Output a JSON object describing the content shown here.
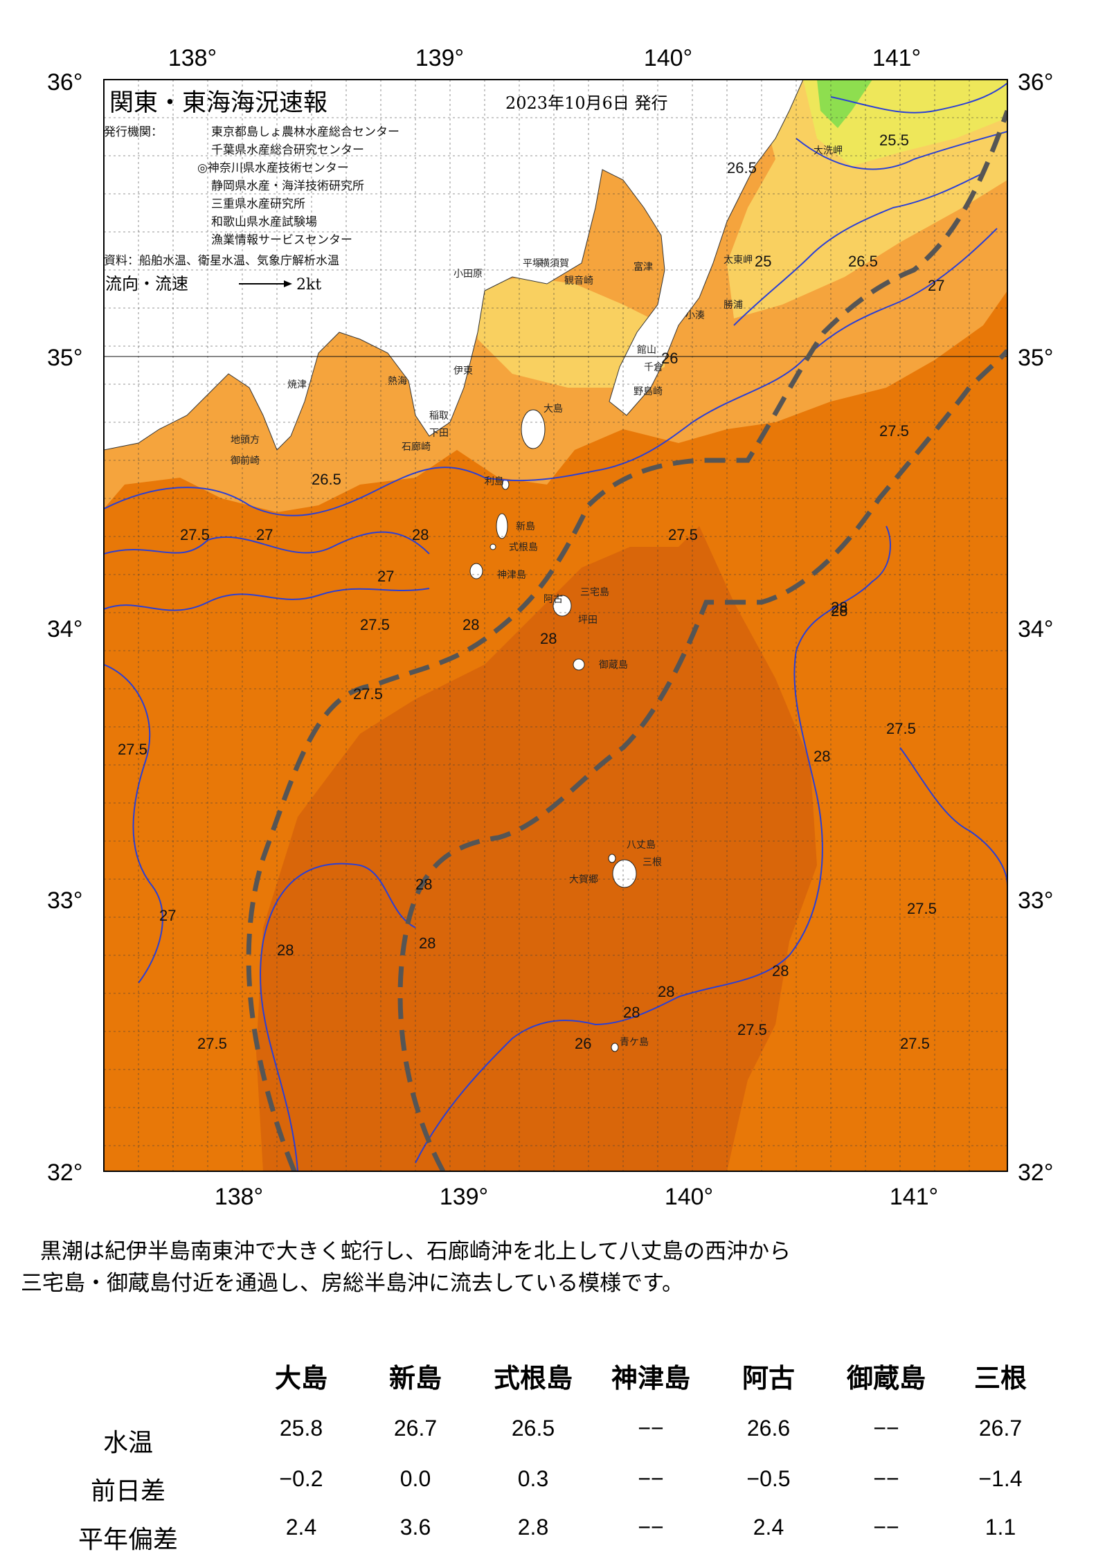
{
  "header": {
    "title": "関東・東海海況速報",
    "date": "2023年10月6日 発行",
    "agency_label": "発行機関：",
    "agencies": [
      "東京都島しょ農林水産総合センター",
      "千葉県水産総合研究センター",
      "◎神奈川県水産技術センター",
      "静岡県水産・海洋技術研究所",
      "三重県水産研究所",
      "和歌山県水産試験場",
      "漁業情報サービスセンター"
    ],
    "source": "資料：船舶水温、衛星水温、気象庁解析水温",
    "legend_label": "流向・流速",
    "legend_speed": "2kt"
  },
  "axes": {
    "lon_labels": [
      "138°",
      "139°",
      "140°",
      "141°"
    ],
    "lat_labels": [
      "36°",
      "35°",
      "34°",
      "33°",
      "32°"
    ]
  },
  "colors": {
    "temp_27_5": "#f5a43d",
    "temp_28": "#e87808",
    "temp_28_5": "#d9660a",
    "temp_26": "#f9d060",
    "temp_25": "#eee75a",
    "land_green": "#8ede4f",
    "isotherm": "#2a3fd6",
    "kuroshio": "#555555"
  },
  "isotherm_labels": [
    "27.5",
    "27",
    "26.5",
    "28",
    "26",
    "25.5",
    "25",
    "26.5",
    "27",
    "27.5",
    "28"
  ],
  "places": [
    "大洗岬",
    "太東岬",
    "小湊",
    "勝浦",
    "館山",
    "千倉",
    "野島崎",
    "平塚",
    "横須賀",
    "観音崎",
    "富津",
    "小田原",
    "伊東",
    "稲取",
    "下田",
    "石廊崎",
    "焼津",
    "御前崎",
    "地頭方",
    "大島",
    "利島",
    "新島",
    "式根島",
    "神津島",
    "三宅島",
    "阿古",
    "坪田",
    "御蔵島",
    "八丈島",
    "三根",
    "大賀郷",
    "青ケ島",
    "熱海"
  ],
  "description": {
    "line1": "黒潮は紀伊半島南東沖で大きく蛇行し、石廊崎沖を北上して八丈島の西沖から",
    "line2": "三宅島・御蔵島付近を通過し、房総半島沖に流去している模様です。"
  },
  "observations": {
    "stations": [
      "大島",
      "新島",
      "式根島",
      "神津島",
      "阿古",
      "御蔵島",
      "三根"
    ],
    "rows": [
      {
        "label": "水温",
        "values": [
          "25.8",
          "26.7",
          "26.5",
          "−−",
          "26.6",
          "−−",
          "26.7"
        ]
      },
      {
        "label": "前日差",
        "values": [
          "−0.2",
          "0.0",
          "0.3",
          "−−",
          "−0.5",
          "−−",
          "−1.4"
        ]
      },
      {
        "label": "平年偏差",
        "values": [
          "2.4",
          "3.6",
          "2.8",
          "−−",
          "2.4",
          "−−",
          "1.1"
        ]
      }
    ]
  }
}
